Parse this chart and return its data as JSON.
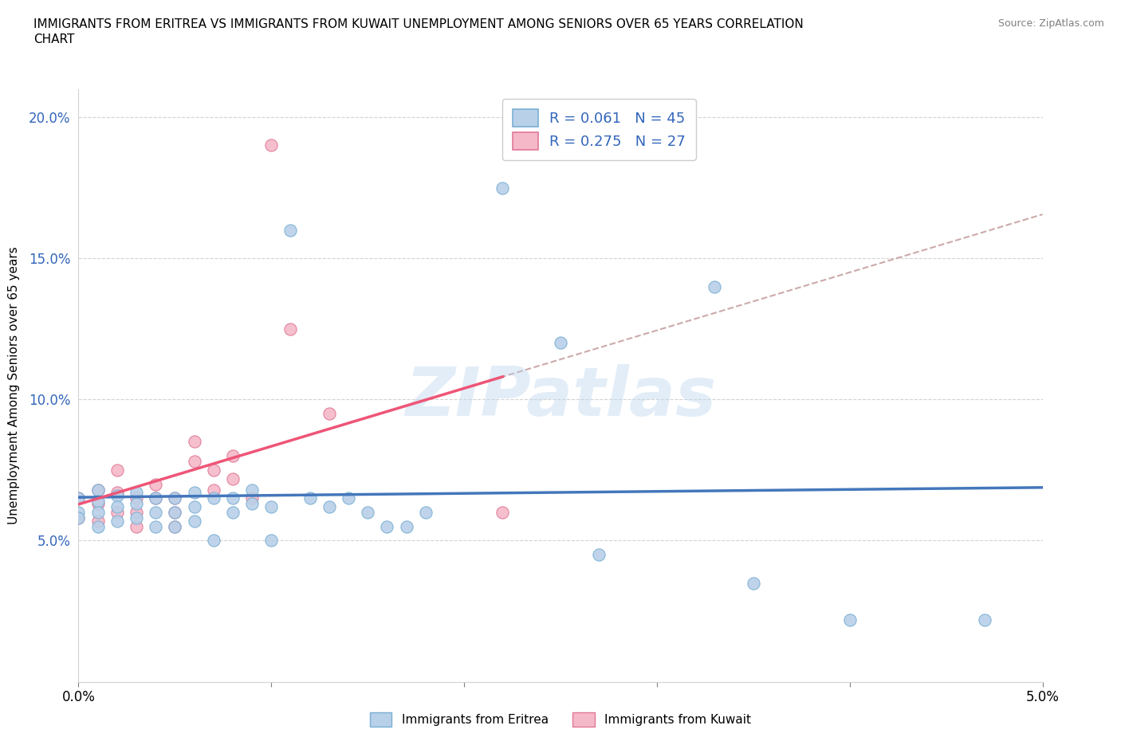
{
  "title_line1": "IMMIGRANTS FROM ERITREA VS IMMIGRANTS FROM KUWAIT UNEMPLOYMENT AMONG SENIORS OVER 65 YEARS CORRELATION",
  "title_line2": "CHART",
  "source_text": "Source: ZipAtlas.com",
  "ylabel": "Unemployment Among Seniors over 65 years",
  "xlim": [
    0.0,
    0.05
  ],
  "ylim": [
    0.0,
    0.21
  ],
  "x_ticks": [
    0.0,
    0.01,
    0.02,
    0.03,
    0.04,
    0.05
  ],
  "y_ticks": [
    0.05,
    0.1,
    0.15,
    0.2
  ],
  "x_tick_labels": [
    "0.0%",
    "",
    "",
    "",
    "",
    "5.0%"
  ],
  "y_tick_labels": [
    "5.0%",
    "10.0%",
    "15.0%",
    "20.0%"
  ],
  "watermark": "ZIPatlas",
  "legend_r1": "R = 0.061",
  "legend_n1": "N = 45",
  "legend_r2": "R = 0.275",
  "legend_n2": "N = 27",
  "color_eritrea_fill": "#b8d0e8",
  "color_eritrea_edge": "#7aafd4",
  "color_kuwait_fill": "#f5b8c8",
  "color_kuwait_edge": "#e07898",
  "color_eritrea_line": "#4477bb",
  "color_kuwait_line": "#ee5577",
  "color_dashed": "#ccaaaa",
  "background_color": "#ffffff",
  "eritrea_x": [
    0.0,
    0.0,
    0.0,
    0.001,
    0.001,
    0.001,
    0.001,
    0.002,
    0.002,
    0.002,
    0.003,
    0.003,
    0.003,
    0.004,
    0.004,
    0.004,
    0.005,
    0.005,
    0.005,
    0.006,
    0.006,
    0.006,
    0.007,
    0.007,
    0.008,
    0.008,
    0.009,
    0.009,
    0.01,
    0.01,
    0.011,
    0.012,
    0.013,
    0.014,
    0.015,
    0.016,
    0.017,
    0.018,
    0.022,
    0.025,
    0.027,
    0.033,
    0.035,
    0.04,
    0.047
  ],
  "eritrea_y": [
    0.065,
    0.06,
    0.058,
    0.068,
    0.064,
    0.06,
    0.055,
    0.066,
    0.062,
    0.057,
    0.067,
    0.063,
    0.058,
    0.065,
    0.06,
    0.055,
    0.065,
    0.06,
    0.055,
    0.067,
    0.062,
    0.057,
    0.065,
    0.05,
    0.065,
    0.06,
    0.068,
    0.063,
    0.062,
    0.05,
    0.16,
    0.065,
    0.062,
    0.065,
    0.06,
    0.055,
    0.055,
    0.06,
    0.175,
    0.12,
    0.045,
    0.14,
    0.035,
    0.022,
    0.022
  ],
  "kuwait_x": [
    0.0,
    0.0,
    0.001,
    0.001,
    0.001,
    0.002,
    0.002,
    0.002,
    0.003,
    0.003,
    0.003,
    0.004,
    0.004,
    0.005,
    0.005,
    0.005,
    0.006,
    0.006,
    0.007,
    0.007,
    0.008,
    0.008,
    0.009,
    0.01,
    0.011,
    0.013,
    0.022
  ],
  "kuwait_y": [
    0.065,
    0.058,
    0.068,
    0.063,
    0.057,
    0.075,
    0.067,
    0.06,
    0.065,
    0.06,
    0.055,
    0.07,
    0.065,
    0.065,
    0.06,
    0.055,
    0.085,
    0.078,
    0.075,
    0.068,
    0.08,
    0.072,
    0.065,
    0.19,
    0.125,
    0.095,
    0.06
  ],
  "eritrea_trend_x0": 0.0,
  "eritrea_trend_x1": 0.05,
  "kuwait_trend_x0": 0.0,
  "kuwait_trend_x1": 0.05,
  "dashed_extends_to": 0.05
}
